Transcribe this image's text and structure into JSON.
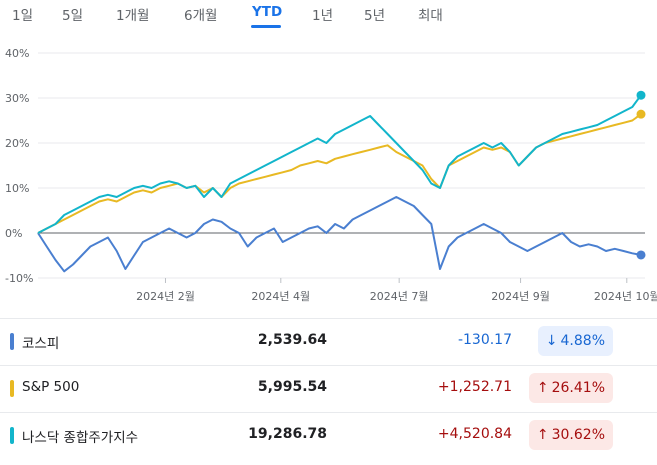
{
  "tabs": [
    {
      "label": "1일",
      "active": false
    },
    {
      "label": "5일",
      "active": false
    },
    {
      "label": "1개월",
      "active": false
    },
    {
      "label": "6개월",
      "active": false
    },
    {
      "label": "YTD",
      "active": true
    },
    {
      "label": "1년",
      "active": false
    },
    {
      "label": "5년",
      "active": false
    },
    {
      "label": "최대",
      "active": false
    }
  ],
  "chart_data": {
    "type": "line",
    "x_ticks": [
      "2024년 2월",
      "2024년 4월",
      "2024년 7월",
      "2024년 9월",
      "2024년 10월"
    ],
    "y_ticks": [
      "40%",
      "30%",
      "20%",
      "10%",
      "0%",
      "-10%"
    ],
    "ylim": [
      -10,
      40
    ],
    "series": [
      {
        "name": "코스피",
        "color": "#4a7fd0",
        "values": [
          0,
          -3,
          -6,
          -8.5,
          -7,
          -5,
          -3,
          -2,
          -1,
          -4,
          -8,
          -5,
          -2,
          -1,
          0,
          1,
          0,
          -1,
          0,
          2,
          3,
          2.5,
          1,
          0,
          -3,
          -1,
          0,
          1,
          -2,
          -1,
          0,
          1,
          1.5,
          0,
          2,
          1,
          3,
          4,
          5,
          6,
          7,
          8,
          7,
          6,
          4,
          2,
          -8,
          -3,
          -1,
          0,
          1,
          2,
          1,
          0,
          -2,
          -3,
          -4,
          -3,
          -2,
          -1,
          0,
          -2,
          -3,
          -2.5,
          -3,
          -4,
          -3.5,
          -4,
          -4.5,
          -4.88
        ]
      },
      {
        "name": "S&P 500",
        "color": "#e8b923",
        "values": [
          0,
          1,
          2,
          3,
          4,
          5,
          6,
          7,
          7.5,
          7,
          8,
          9,
          9.5,
          9,
          10,
          10.5,
          11,
          10,
          10.5,
          9,
          10,
          8,
          10,
          11,
          11.5,
          12,
          12.5,
          13,
          13.5,
          14,
          15,
          15.5,
          16,
          15.5,
          16.5,
          17,
          17.5,
          18,
          18.5,
          19,
          19.5,
          18,
          17,
          16,
          15,
          12,
          10,
          15,
          16,
          17,
          18,
          19,
          18.5,
          19,
          18,
          15,
          17,
          19,
          20,
          20.5,
          21,
          21.5,
          22,
          22.5,
          23,
          23.5,
          24,
          24.5,
          25,
          26.41
        ]
      },
      {
        "name": "나스닥 종합주가지수",
        "color": "#12b5cb",
        "values": [
          0,
          1,
          2,
          4,
          5,
          6,
          7,
          8,
          8.5,
          8,
          9,
          10,
          10.5,
          10,
          11,
          11.5,
          11,
          10,
          10.5,
          8,
          10,
          8,
          11,
          12,
          13,
          14,
          15,
          16,
          17,
          18,
          19,
          20,
          21,
          20,
          22,
          23,
          24,
          25,
          26,
          24,
          22,
          20,
          18,
          16,
          14,
          11,
          10,
          15,
          17,
          18,
          19,
          20,
          19,
          20,
          18,
          15,
          17,
          19,
          20,
          21,
          22,
          22.5,
          23,
          23.5,
          24,
          25,
          26,
          27,
          28,
          30.62
        ]
      }
    ]
  },
  "rows": [
    {
      "name": "코스피",
      "price": "2,539.64",
      "change": "-130.17",
      "percent": "4.88%",
      "direction": "down",
      "arrow": "↓",
      "marker_color": "#4a7fd0"
    },
    {
      "name": "S&P 500",
      "price": "5,995.54",
      "change": "+1,252.71",
      "percent": "26.41%",
      "direction": "up",
      "arrow": "↑",
      "marker_color": "#e8b923"
    },
    {
      "name": "나스닥 종합주가지수",
      "price": "19,286.78",
      "change": "+4,520.84",
      "percent": "30.62%",
      "direction": "up",
      "arrow": "↑",
      "marker_color": "#12b5cb"
    }
  ],
  "colors": {
    "down_text": "#1967d2",
    "down_bg": "#e8f0fe",
    "up_text": "#a50e0e",
    "up_bg": "#fce8e6"
  }
}
